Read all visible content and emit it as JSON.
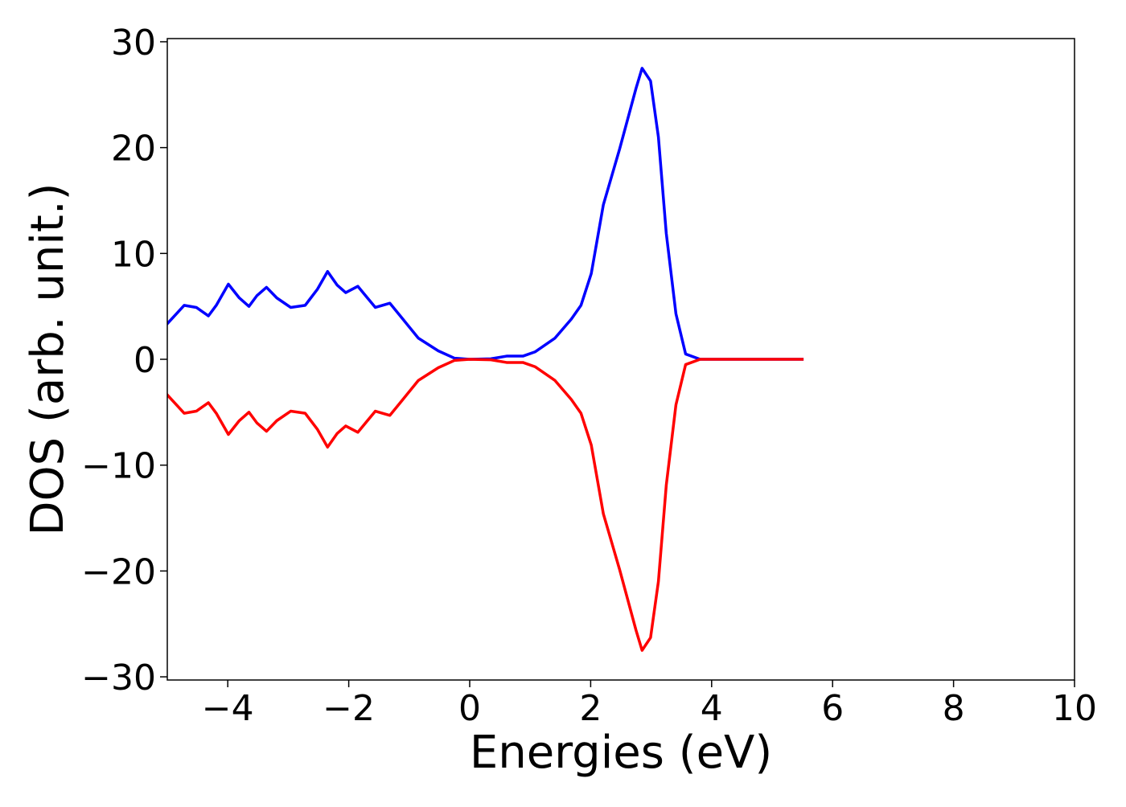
{
  "chart_data": {
    "type": "line",
    "xlabel": "Energies (eV)",
    "ylabel": "DOS (arb. unit.)",
    "x": [
      -5.01,
      -4.72,
      -4.52,
      -4.32,
      -4.19,
      -3.99,
      -3.81,
      -3.65,
      -3.52,
      -3.36,
      -3.19,
      -2.96,
      -2.72,
      -2.52,
      -2.35,
      -2.19,
      -2.05,
      -1.85,
      -1.72,
      -1.56,
      -1.32,
      -1.12,
      -0.85,
      -0.52,
      -0.25,
      0,
      0.35,
      0.61,
      0.88,
      1.08,
      1.41,
      1.68,
      1.84,
      2.01,
      2.21,
      2.48,
      2.75,
      2.85,
      2.99,
      3.12,
      3.25,
      3.41,
      3.57,
      3.81,
      5.52
    ],
    "series": [
      {
        "color": "#0000ff",
        "values": [
          3.3,
          5.1,
          4.9,
          4.1,
          5.1,
          7.1,
          5.8,
          5.0,
          6.0,
          6.8,
          5.8,
          4.9,
          5.1,
          6.6,
          8.3,
          7.0,
          6.3,
          6.9,
          6.0,
          4.9,
          5.3,
          3.9,
          2.0,
          0.8,
          0.1,
          0,
          0.05,
          0.3,
          0.3,
          0.7,
          2.0,
          3.8,
          5.1,
          8.1,
          14.6,
          19.9,
          25.6,
          27.5,
          26.3,
          21.0,
          11.9,
          4.3,
          0.5,
          0,
          0
        ]
      },
      {
        "color": "#ff0000",
        "values": [
          -3.3,
          -5.1,
          -4.9,
          -4.1,
          -5.1,
          -7.1,
          -5.8,
          -5.0,
          -6.0,
          -6.8,
          -5.8,
          -4.9,
          -5.1,
          -6.6,
          -8.3,
          -7.0,
          -6.3,
          -6.9,
          -6.0,
          -4.9,
          -5.3,
          -3.9,
          -2.0,
          -0.8,
          -0.1,
          0,
          -0.05,
          -0.3,
          -0.3,
          -0.7,
          -2.0,
          -3.8,
          -5.1,
          -8.1,
          -14.6,
          -19.9,
          -25.6,
          -27.5,
          -26.3,
          -21.0,
          -11.9,
          -4.3,
          -0.5,
          0,
          0
        ]
      }
    ],
    "xlim": [
      -5,
      10
    ],
    "xticks": [
      {
        "value": -4,
        "label": "−4"
      },
      {
        "value": -2,
        "label": "−2"
      },
      0,
      2,
      4,
      6,
      8,
      10
    ],
    "ylim": [
      -30.3,
      30.3
    ],
    "yticks": [
      {
        "value": -30,
        "label": "−30"
      },
      {
        "value": -20,
        "label": "−20"
      },
      {
        "value": -10,
        "label": "−10"
      },
      0,
      10,
      20,
      30
    ],
    "grid": false
  }
}
